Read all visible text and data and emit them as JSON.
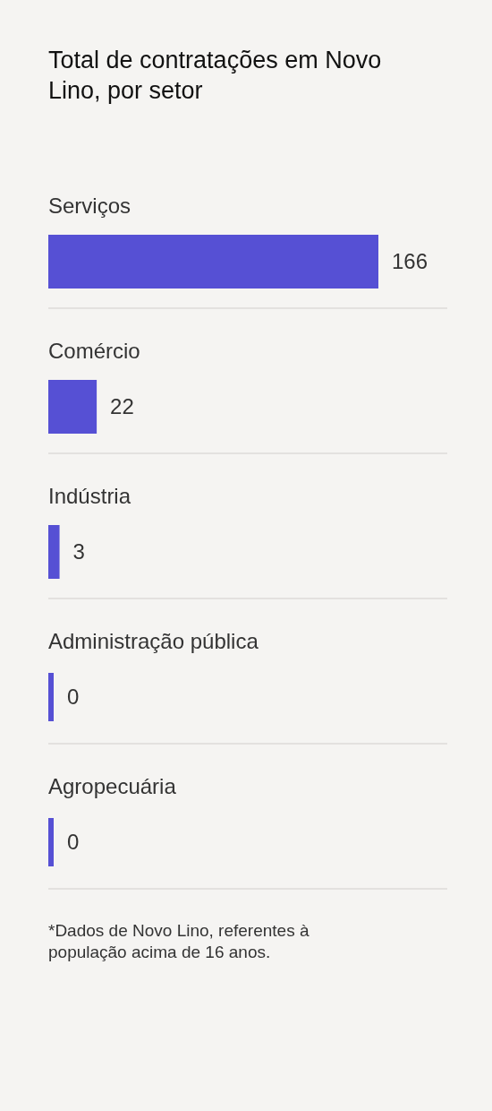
{
  "chart_data": {
    "type": "bar",
    "orientation": "horizontal",
    "title": "Total de contratações em Novo Lino, por setor",
    "categories": [
      "Serviços",
      "Comércio",
      "Indústria",
      "Administração pública",
      "Agropecuária"
    ],
    "values": [
      166,
      22,
      3,
      0,
      0
    ],
    "color": "#5650d4",
    "data_labels": true,
    "grid": "y",
    "tick_labels": "y",
    "annotations": [
      "*Dados de Novo Lino, referentes à população acima de 16 anos."
    ]
  }
}
